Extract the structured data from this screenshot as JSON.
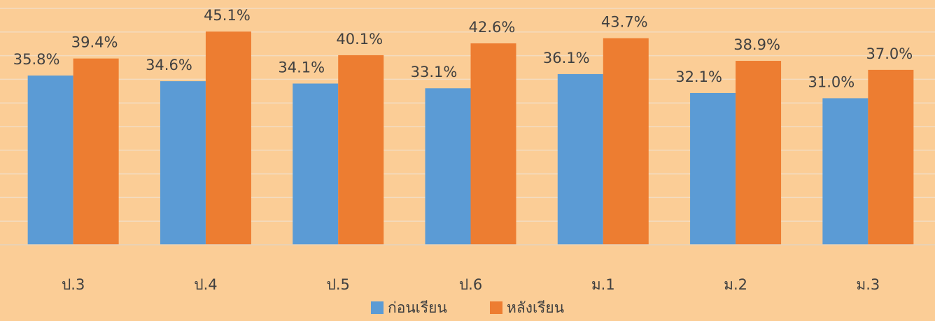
{
  "chart_data": {
    "type": "bar",
    "categories": [
      "ป.3",
      "ป.4",
      "ป.5",
      "ป.6",
      "ม.1",
      "ม.2",
      "ม.3"
    ],
    "series": [
      {
        "name": "ก่อนเรียน",
        "color": "#5b9bd5",
        "values": [
          35.8,
          34.6,
          34.1,
          33.1,
          36.1,
          32.1,
          31.0
        ],
        "value_labels": [
          "35.8%",
          "34.6%",
          "34.1%",
          "33.1%",
          "36.1%",
          "32.1%",
          "31.0%"
        ]
      },
      {
        "name": "หลังเรียน",
        "color": "#ed7d31",
        "values": [
          39.4,
          45.1,
          40.1,
          42.6,
          43.7,
          38.9,
          37.0
        ],
        "value_labels": [
          "39.4%",
          "45.1%",
          "40.1%",
          "42.6%",
          "43.7%",
          "38.9%",
          "37.0%"
        ]
      }
    ],
    "ylim": [
      0,
      50
    ],
    "yticks": [
      0,
      5,
      10,
      15,
      20,
      25,
      30,
      35,
      40,
      45,
      50
    ],
    "grid": true,
    "legend": "bottom"
  }
}
